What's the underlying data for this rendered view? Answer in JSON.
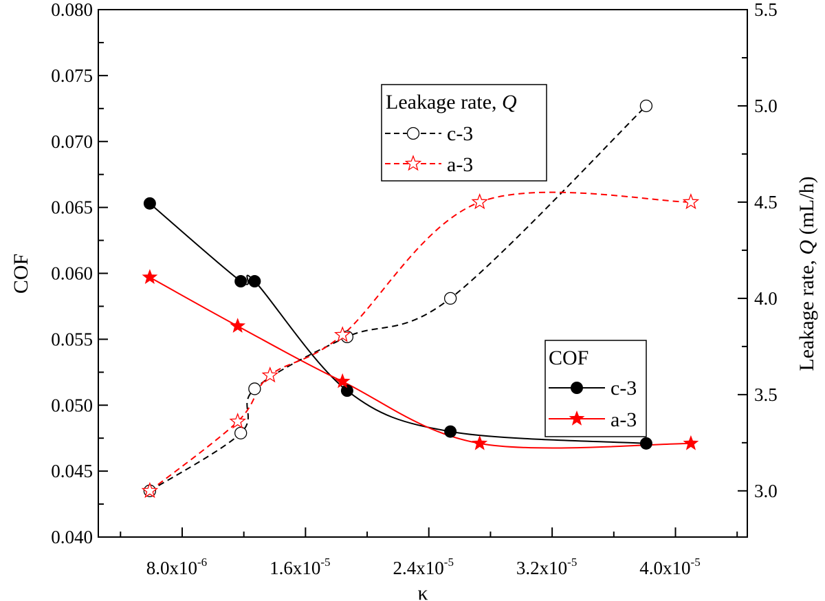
{
  "chart_data": {
    "type": "line",
    "title": "",
    "xlabel": "κ",
    "ylabel_left": "COF",
    "ylabel_right_prefix": "Leakage rate, ",
    "ylabel_right_var": "Q",
    "ylabel_right_suffix": " (mL/h)",
    "xlim": [
      2.56e-06,
      4.466e-05
    ],
    "ylim_left": [
      0.04,
      0.08
    ],
    "ylim_right": [
      2.76,
      5.5
    ],
    "x_ticks": [
      {
        "value": 8e-06,
        "mant": "8.0x10",
        "exp": "-6"
      },
      {
        "value": 1.6e-05,
        "mant": "1.6x10",
        "exp": "-5"
      },
      {
        "value": 2.4e-05,
        "mant": "2.4x10",
        "exp": "-5"
      },
      {
        "value": 3.2e-05,
        "mant": "3.2x10",
        "exp": "-5"
      },
      {
        "value": 4e-05,
        "mant": "4.0x10",
        "exp": "-5"
      }
    ],
    "y_left_ticks": [
      "0.040",
      "0.045",
      "0.050",
      "0.055",
      "0.060",
      "0.065",
      "0.070",
      "0.075",
      "0.080"
    ],
    "y_right_ticks": [
      "3.0",
      "3.5",
      "4.0",
      "4.5",
      "5.0",
      "5.5"
    ],
    "grid": false,
    "legends": [
      {
        "title_prefix": "Leakage rate, ",
        "title_var": "Q",
        "placement": "top-center",
        "entries": [
          "c-3",
          "a-3"
        ]
      },
      {
        "title": "COF",
        "placement": "lower-right",
        "entries": [
          "c-3",
          "a-3"
        ]
      }
    ],
    "series": [
      {
        "name": "c-3",
        "group": "COF",
        "axis": "left",
        "color": "#000000",
        "style": "solid",
        "marker": "filled-circle",
        "x": [
          5.9e-06,
          1.18e-05,
          1.27e-05,
          1.87e-05,
          2.54e-05,
          3.81e-05
        ],
        "y": [
          0.0653,
          0.0594,
          0.0594,
          0.0511,
          0.048,
          0.0471
        ]
      },
      {
        "name": "a-3",
        "group": "COF",
        "axis": "left",
        "color": "#ff0000",
        "style": "solid",
        "marker": "filled-star",
        "x": [
          5.9e-06,
          1.16e-05,
          1.84e-05,
          2.73e-05,
          4.1e-05
        ],
        "y": [
          0.0597,
          0.056,
          0.0518,
          0.0471,
          0.0471
        ]
      },
      {
        "name": "c-3",
        "group": "Leakage rate, Q",
        "axis": "right",
        "color": "#000000",
        "style": "dashed",
        "marker": "open-circle",
        "x": [
          5.9e-06,
          1.18e-05,
          1.27e-05,
          1.87e-05,
          2.54e-05,
          3.81e-05
        ],
        "y": [
          3.0,
          3.3,
          3.53,
          3.8,
          4.0,
          5.0
        ]
      },
      {
        "name": "a-3",
        "group": "Leakage rate, Q",
        "axis": "right",
        "color": "#ff0000",
        "style": "dashed",
        "marker": "open-star",
        "x": [
          5.9e-06,
          1.16e-05,
          1.37e-05,
          1.84e-05,
          2.73e-05,
          4.1e-05
        ],
        "y": [
          3.0,
          3.36,
          3.6,
          3.81,
          4.5,
          4.5
        ]
      }
    ]
  }
}
